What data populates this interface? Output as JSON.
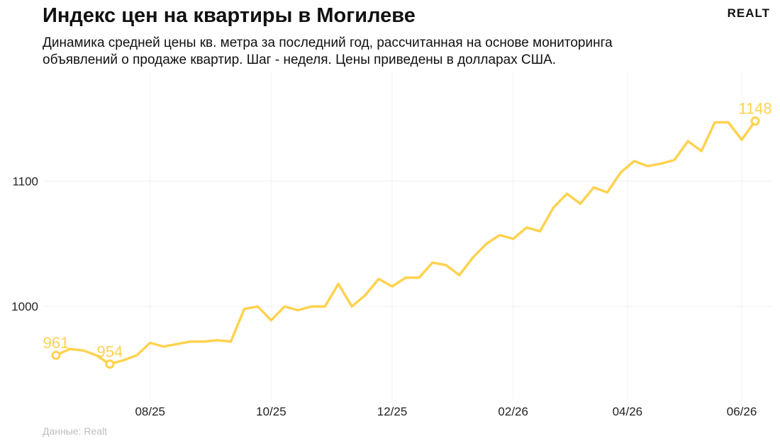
{
  "header": {
    "title": "Индекс цен на квартиры в Могилеве",
    "subtitle": "Динамика средней цены кв. метра за последний год, рассчитанная на основе мониторинга объявлений о продаже квартир. Шаг - неделя. Цены приведены в долларах США.",
    "brand": "Realt"
  },
  "footer": {
    "source": "Данные: Realt"
  },
  "chart_data": {
    "type": "line",
    "title": "Индекс цен на квартиры в Могилеве",
    "xlabel": "",
    "ylabel": "",
    "x_tick_labels": [
      "08/25",
      "10/25",
      "12/25",
      "02/26",
      "04/26",
      "06/26"
    ],
    "x_tick_positions": [
      7,
      16,
      25,
      34,
      42.5,
      51
    ],
    "y_ticks": [
      1000,
      1100
    ],
    "ylim": [
      926,
      1188
    ],
    "grid": true,
    "color": "#FFD24F",
    "series": [
      {
        "name": "",
        "values": [
          961,
          966,
          965,
          961,
          954,
          957,
          961,
          971,
          968,
          970,
          972,
          972,
          973,
          972,
          998,
          1000,
          989,
          1000,
          997,
          1000,
          1000,
          1018,
          1000,
          1009,
          1022,
          1016,
          1023,
          1023,
          1035,
          1033,
          1025,
          1039,
          1050,
          1057,
          1054,
          1063,
          1060,
          1079,
          1090,
          1082,
          1095,
          1091,
          1107,
          1116,
          1112,
          1114,
          1117,
          1132,
          1124,
          1147,
          1147,
          1133,
          1148
        ]
      }
    ],
    "annotations": [
      {
        "index": 0,
        "label": "961"
      },
      {
        "index": 4,
        "label": "954"
      },
      {
        "index": 52,
        "label": "1148"
      }
    ]
  }
}
